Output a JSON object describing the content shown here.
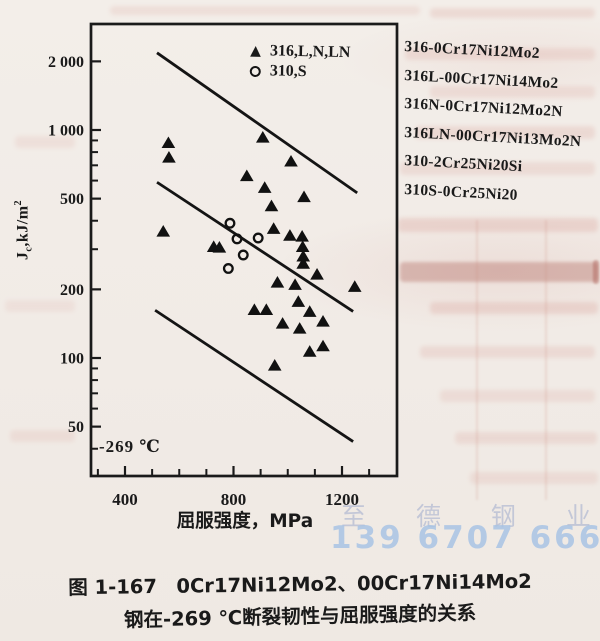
{
  "colors": {
    "ink": "#1a1a1a",
    "paper": "#f1ebe6",
    "watermark_blue": "#a9c4e4",
    "watermark_gray": "#b9bfd4",
    "bleed_pink": "#cf8279"
  },
  "legend": {
    "items": [
      {
        "marker": "triangle",
        "label": "316,L,N,LN"
      },
      {
        "marker": "circle",
        "label": "310,S"
      }
    ]
  },
  "ylabel_parts": {
    "base": "J",
    "sub": "c",
    "rest": ",kJ/m",
    "sup": "2"
  },
  "xlabel": "屈服强度，MPa",
  "temperature_annotation": "-269 ℃",
  "grade_list": [
    "316-0Cr17Ni12Mo2",
    "316L-00Cr17Ni14Mo2",
    "316N-0Cr17Ni12Mo2N",
    "316LN-00Cr17Ni13Mo2N",
    "310-2Cr25Ni20Si",
    "310S-0Cr25Ni20"
  ],
  "watermark": {
    "line1": "至 德 钢 业",
    "line2": "139 6707 6667"
  },
  "caption": {
    "line1": "图 1-167　0Cr17Ni12Mo2、00Cr17Ni14Mo2",
    "line2": "钢在-269 ℃断裂韧性与屈服强度的关系"
  },
  "chart_data": {
    "type": "scatter",
    "title": "",
    "xlabel": "屈服强度，MPa",
    "ylabel": "Jc, kJ/m2",
    "annotation": "-269 ℃",
    "x_axis": {
      "scale": "linear",
      "lim": [
        270,
        1410
      ],
      "major_ticks": [
        400,
        800,
        1200
      ],
      "major_tick_labels": [
        "400",
        "800",
        "1200"
      ],
      "minor_ticks": [
        300,
        500,
        600,
        700,
        900,
        1000,
        1100,
        1300
      ]
    },
    "y_axis": {
      "scale": "log",
      "lim": [
        30,
        3050
      ],
      "major_ticks": [
        2000,
        1000,
        500,
        200,
        100,
        50
      ],
      "major_tick_labels": [
        "2 000",
        "1 000",
        "500",
        "200",
        "100",
        "50"
      ],
      "minor_ticks": [
        900,
        800,
        700,
        600,
        400,
        300,
        90,
        80,
        70,
        60,
        40
      ]
    },
    "grid": false,
    "legend_position": "top-center-inside",
    "series": [
      {
        "name": "316,L,N,LN",
        "marker": "triangle",
        "points": [
          [
            560,
            880
          ],
          [
            562,
            760
          ],
          [
            908,
            930
          ],
          [
            1012,
            730
          ],
          [
            849,
            630
          ],
          [
            915,
            560
          ],
          [
            1060,
            510
          ],
          [
            940,
            465
          ],
          [
            541,
            360
          ],
          [
            948,
            370
          ],
          [
            1008,
            345
          ],
          [
            1053,
            342
          ],
          [
            727,
            308
          ],
          [
            748,
            306
          ],
          [
            1055,
            308
          ],
          [
            1057,
            280
          ],
          [
            1057,
            260
          ],
          [
            1108,
            233
          ],
          [
            962,
            215
          ],
          [
            1027,
            210
          ],
          [
            1247,
            206
          ],
          [
            1039,
            177
          ],
          [
            877,
            163
          ],
          [
            921,
            163
          ],
          [
            1081,
            160
          ],
          [
            981,
            142
          ],
          [
            1130,
            145
          ],
          [
            1044,
            135
          ],
          [
            1081,
            107
          ],
          [
            1130,
            113
          ],
          [
            952,
            93
          ]
        ]
      },
      {
        "name": "310,S",
        "marker": "circle",
        "points": [
          [
            787,
            390
          ],
          [
            813,
            333
          ],
          [
            891,
            336
          ],
          [
            836,
            283
          ],
          [
            781,
            247
          ]
        ]
      }
    ],
    "trend_lines": [
      {
        "name": "upper-bound-line",
        "points": [
          [
            518,
            2180
          ],
          [
            1256,
            530
          ]
        ]
      },
      {
        "name": "middle-trend-line",
        "points": [
          [
            518,
            590
          ],
          [
            1241,
            160
          ]
        ]
      },
      {
        "name": "lower-bound-line",
        "points": [
          [
            511,
            162
          ],
          [
            1241,
            43
          ]
        ]
      }
    ]
  }
}
